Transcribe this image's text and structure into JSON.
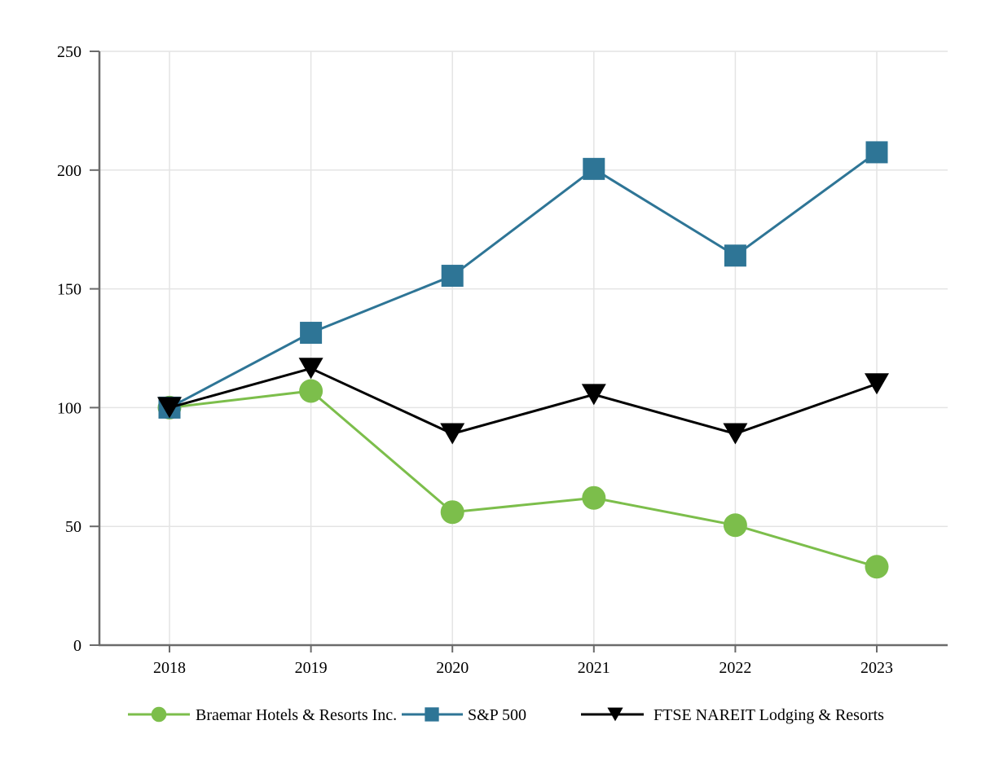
{
  "page": {
    "background": "#FFFFFF",
    "description": "Comparison of cumulative total return line chart"
  },
  "colors": {
    "axis": "#6B6B6B",
    "gridline": "#E4E4E4",
    "label_text": "#000000",
    "braemar_green": "#7CBE4B",
    "sp500_blue": "#2E7596",
    "ftse_black": "#000000"
  },
  "chart_data": {
    "type": "line",
    "title": "",
    "xlabel": "",
    "ylabel": "",
    "categories": [
      "2018",
      "2019",
      "2020",
      "2021",
      "2022",
      "2023"
    ],
    "series": [
      {
        "name": "Braemar Hotels & Resorts Inc.",
        "marker": "circle",
        "color": "#7CBE4B",
        "values": [
          100,
          107,
          56,
          62,
          50.5,
          33
        ]
      },
      {
        "name": "S&P 500",
        "marker": "square",
        "color": "#2E7596",
        "values": [
          100,
          131.5,
          155.5,
          200.5,
          164,
          207.5
        ]
      },
      {
        "name": "FTSE NAREIT Lodging & Resorts",
        "marker": "triangle-down",
        "color": "#000000",
        "values": [
          100,
          116.5,
          89,
          105.5,
          89,
          110
        ]
      }
    ],
    "ylim": [
      0,
      250
    ],
    "yticks": [
      0,
      50,
      100,
      150,
      200,
      250
    ],
    "ytick_labels": [
      "0",
      "50",
      "100",
      "150",
      "200",
      "250"
    ],
    "grid": true,
    "legend_position": "bottom"
  }
}
